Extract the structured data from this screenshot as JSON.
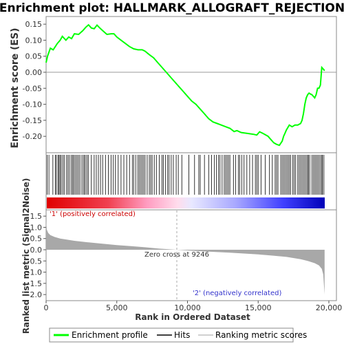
{
  "chart_data": [
    {
      "type": "line",
      "title": "Enrichment plot: HALLMARK_ALLOGRAFT_REJECTION",
      "ylabel": "Enrichment score (ES)",
      "ylim": [
        -0.235,
        0.16
      ],
      "yticks": [
        0.15,
        0.1,
        0.05,
        0.0,
        -0.05,
        -0.1,
        -0.15,
        -0.2
      ],
      "ytick_labels": [
        "0.15",
        "0.10",
        "0.05",
        "0.00",
        "-0.05",
        "-0.10",
        "-0.15",
        "-0.20"
      ],
      "grid": false,
      "series": [
        {
          "name": "Enrichment profile",
          "color": "#00ff00",
          "x": [
            0,
            100,
            300,
            500,
            650,
            800,
            1000,
            1150,
            1400,
            1600,
            1800,
            2000,
            2300,
            2600,
            2800,
            3000,
            3200,
            3400,
            3600,
            3800,
            4000,
            4300,
            4600,
            4800,
            5000,
            5300,
            5600,
            5900,
            6200,
            6500,
            6800,
            7000,
            7300,
            7600,
            7900,
            8200,
            8500,
            8800,
            9100,
            9400,
            9700,
            10000,
            10300,
            10600,
            10900,
            11200,
            11500,
            11800,
            12100,
            12400,
            12700,
            13000,
            13300,
            13500,
            13800,
            14100,
            14400,
            14700,
            14900,
            15100,
            15300,
            15500,
            15700,
            15900,
            16100,
            16300,
            16500,
            16700,
            16800,
            16900,
            17000,
            17200,
            17400,
            17600,
            17800,
            18000,
            18100,
            18200,
            18300,
            18400,
            18500,
            18600,
            18700,
            18800,
            18900,
            19000,
            19100,
            19200,
            19300,
            19400,
            19500,
            19600,
            19700
          ],
          "y": [
            0.03,
            0.05,
            0.075,
            0.07,
            0.08,
            0.09,
            0.1,
            0.112,
            0.1,
            0.11,
            0.105,
            0.12,
            0.118,
            0.13,
            0.14,
            0.148,
            0.138,
            0.136,
            0.147,
            0.138,
            0.13,
            0.118,
            0.12,
            0.12,
            0.11,
            0.1,
            0.09,
            0.08,
            0.073,
            0.07,
            0.07,
            0.066,
            0.055,
            0.045,
            0.03,
            0.015,
            0.0,
            -0.015,
            -0.03,
            -0.045,
            -0.06,
            -0.075,
            -0.09,
            -0.1,
            -0.115,
            -0.13,
            -0.145,
            -0.155,
            -0.16,
            -0.165,
            -0.17,
            -0.175,
            -0.185,
            -0.182,
            -0.188,
            -0.19,
            -0.192,
            -0.194,
            -0.196,
            -0.186,
            -0.19,
            -0.195,
            -0.2,
            -0.21,
            -0.22,
            -0.225,
            -0.228,
            -0.215,
            -0.2,
            -0.19,
            -0.18,
            -0.165,
            -0.17,
            -0.165,
            -0.165,
            -0.16,
            -0.15,
            -0.13,
            -0.1,
            -0.08,
            -0.07,
            -0.065,
            -0.068,
            -0.07,
            -0.075,
            -0.08,
            -0.07,
            -0.05,
            -0.05,
            -0.04,
            0.015,
            0.01,
            0.005
          ]
        }
      ]
    },
    {
      "type": "scatter",
      "name": "hits",
      "series": [
        {
          "name": "Hits",
          "color": "#000000",
          "x": [
            80,
            200,
            480,
            650,
            730,
            850,
            920,
            1000,
            1080,
            1200,
            1300,
            1450,
            1550,
            1650,
            1780,
            1880,
            1950,
            2050,
            2150,
            2250,
            2350,
            2480,
            2600,
            2700,
            2780,
            2900,
            3000,
            3200,
            3400,
            3550,
            3700,
            3850,
            4000,
            4200,
            4400,
            4600,
            4750,
            4900,
            5100,
            5300,
            5500,
            5700,
            5900,
            6100,
            6200,
            6350,
            6500,
            6600,
            6700,
            6800,
            6900,
            7000,
            7150,
            7300,
            7400,
            7500,
            7650,
            7800,
            8000,
            8200,
            8300,
            8450,
            8600,
            8700,
            8850,
            9000,
            9200,
            9350,
            9600,
            10100,
            10500,
            10800,
            10900,
            11200,
            11500,
            11700,
            11900,
            12050,
            12200,
            12300,
            12450,
            12600,
            12700,
            12800,
            12900,
            13000,
            13250,
            13400,
            13600,
            13700,
            13850,
            14000,
            14200,
            14400,
            14600,
            14800,
            14900,
            15000,
            15200,
            15500,
            15800,
            16000,
            16200,
            16300,
            16400,
            16600,
            16700,
            16800,
            16900,
            17000,
            17100,
            17200,
            17300,
            17450,
            17550,
            17650,
            17800,
            17900,
            18000,
            18100,
            18200,
            18300,
            18400,
            18500,
            18550,
            18650,
            18800,
            18900,
            19000,
            19100,
            19200,
            19300,
            19400,
            19500,
            19550,
            19650
          ]
        }
      ]
    },
    {
      "type": "area",
      "ylabel": "Ranked list metric (Signal2Noise)",
      "xlabel": "Rank in Ordered Dataset",
      "xlim": [
        0,
        20000
      ],
      "ylim": [
        -2.15,
        1.75
      ],
      "xticks": [
        0,
        5000,
        10000,
        15000,
        20000
      ],
      "xtick_labels": [
        "0",
        "5,000",
        "10,000",
        "15,000",
        "20,000"
      ],
      "yticks": [
        1.5,
        1.0,
        0.5,
        0.0,
        -0.5,
        -1.0,
        -1.5,
        -2.0
      ],
      "ytick_labels": [
        "1.5",
        "1.0",
        "0.5",
        "0.0",
        "-0.5",
        "-1.0",
        "-1.5",
        "-2.0"
      ],
      "series": [
        {
          "name": "Ranking metric scores",
          "color": "#a0a0a0",
          "x": [
            0,
            50,
            150,
            300,
            600,
            1000,
            2000,
            3000,
            4000,
            5000,
            6000,
            7000,
            8000,
            9246,
            10000,
            11000,
            12000,
            13000,
            14000,
            15000,
            16000,
            17000,
            18000,
            18500,
            19000,
            19300,
            19500,
            19600,
            19700
          ],
          "y": [
            1.3,
            0.9,
            0.75,
            0.65,
            0.57,
            0.5,
            0.4,
            0.33,
            0.27,
            0.21,
            0.16,
            0.11,
            0.05,
            0.0,
            -0.03,
            -0.07,
            -0.1,
            -0.13,
            -0.17,
            -0.21,
            -0.26,
            -0.32,
            -0.42,
            -0.5,
            -0.6,
            -0.7,
            -0.85,
            -1.1,
            -2.0
          ]
        }
      ],
      "annotations": {
        "pos_label": "'1' (positively correlated)",
        "neg_label": "'2' (negatively correlated)",
        "zero_cross": "Zero cross at 9246",
        "zero_cross_x": 9246
      },
      "heat_colors": [
        "#e00000",
        "#ff8aa0",
        "#ffc0e8",
        "#d0d0ff",
        "#6060ff",
        "#0000c8"
      ]
    }
  ],
  "legend": {
    "placement": "bottom",
    "items": [
      {
        "label": "Enrichment profile",
        "color": "#00ff00"
      },
      {
        "label": "Hits",
        "color": "#000000"
      },
      {
        "label": "Ranking metric scores",
        "color": "#c0c0c0"
      }
    ]
  }
}
